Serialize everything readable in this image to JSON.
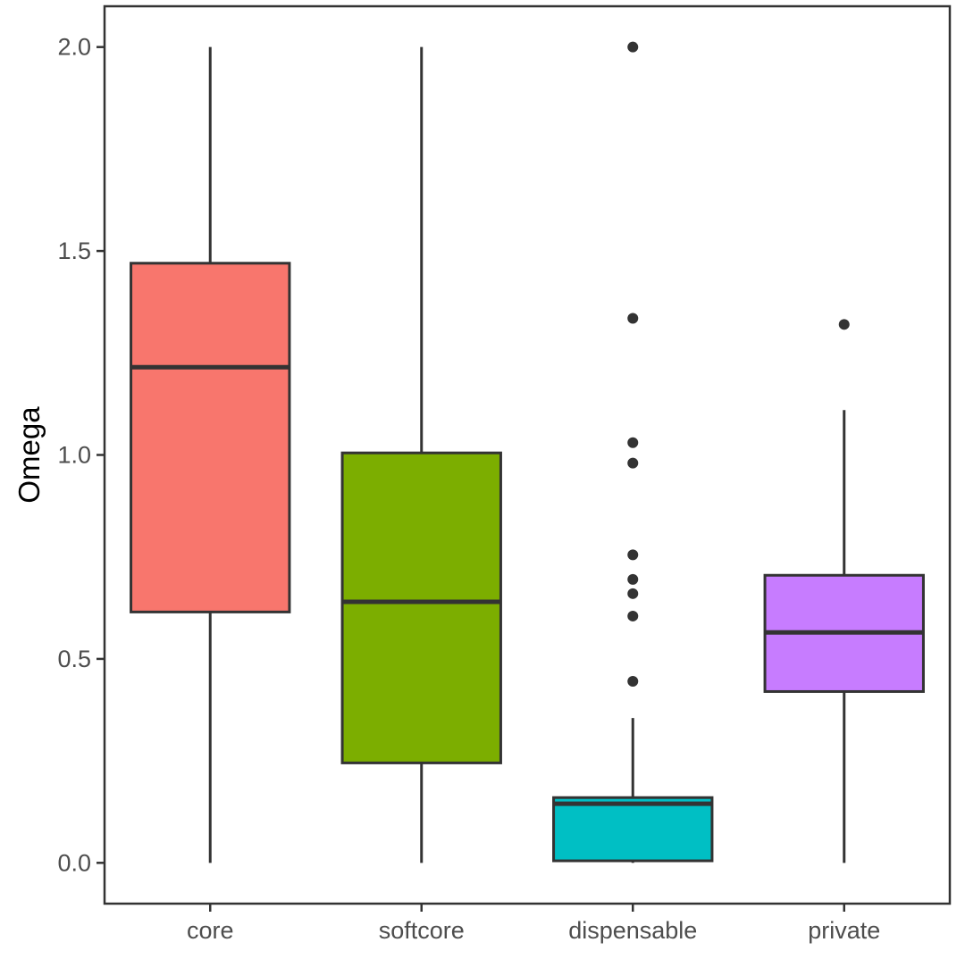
{
  "chart_data": {
    "type": "boxplot",
    "title": "",
    "xlabel": "",
    "ylabel": "Omega",
    "ylim": [
      -0.1,
      2.1
    ],
    "yticks": [
      "0.0",
      "0.5",
      "1.0",
      "1.5",
      "2.0"
    ],
    "ytick_values": [
      0,
      0.5,
      1.0,
      1.5,
      2.0
    ],
    "grid": false,
    "legend": "none",
    "categories": [
      "core",
      "softcore",
      "dispensable",
      "private"
    ],
    "boxes": [
      {
        "name": "core",
        "color": "#F8766D",
        "whisker_low": 0.0,
        "q1": 0.615,
        "median": 1.215,
        "q3": 1.47,
        "whisker_high": 2.0,
        "outliers": []
      },
      {
        "name": "softcore",
        "color": "#7CAE00",
        "whisker_low": 0.0,
        "q1": 0.245,
        "median": 0.64,
        "q3": 1.005,
        "whisker_high": 2.0,
        "outliers": []
      },
      {
        "name": "dispensable",
        "color": "#00BFC4",
        "whisker_low": 0.0,
        "q1": 0.005,
        "median": 0.145,
        "q3": 0.16,
        "whisker_high": 0.355,
        "outliers": [
          2.0,
          1.335,
          1.03,
          0.98,
          0.755,
          0.695,
          0.66,
          0.605,
          0.445
        ]
      },
      {
        "name": "private",
        "color": "#C77CFF",
        "whisker_low": 0.0,
        "q1": 0.42,
        "median": 0.565,
        "q3": 0.705,
        "whisker_high": 1.11,
        "outliers": [
          1.32
        ]
      }
    ]
  }
}
